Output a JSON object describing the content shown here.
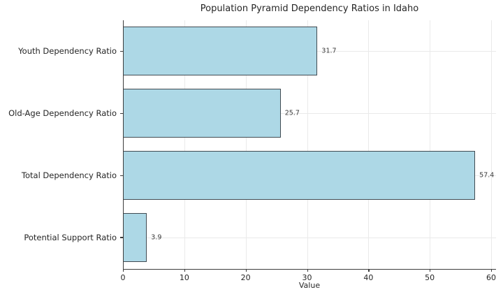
{
  "chart_data": {
    "type": "bar",
    "orientation": "horizontal",
    "title": "Population Pyramid Dependency Ratios in Idaho",
    "xlabel": "Value",
    "ylabel": "",
    "categories": [
      "Youth Dependency Ratio",
      "Old-Age Dependency Ratio",
      "Total Dependency Ratio",
      "Potential Support Ratio"
    ],
    "values": [
      31.7,
      25.7,
      57.4,
      3.9
    ],
    "value_labels": [
      "31.7",
      "25.7",
      "57.4",
      "3.9"
    ],
    "x_ticks": [
      0,
      10,
      20,
      30,
      40,
      50,
      60
    ],
    "x_tick_labels": [
      "0",
      "10",
      "20",
      "30",
      "40",
      "50",
      "60"
    ],
    "xlim": [
      0,
      60.8
    ],
    "grid": true,
    "legend": false,
    "colors": {
      "bar_fill": "#ADD8E6",
      "bar_edge": "#414b52",
      "grid": "#eaeaea",
      "axis": "#3c3c3c",
      "text": "#262626"
    }
  }
}
